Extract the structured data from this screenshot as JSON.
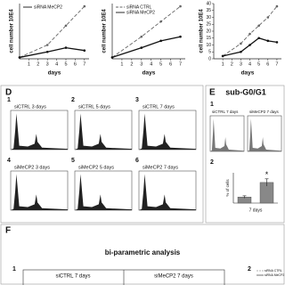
{
  "chart_data": [
    {
      "type": "line",
      "ylabel": "cell number 10E4",
      "xlabel": "days",
      "xticks": [
        1,
        2,
        3,
        4,
        5,
        6,
        7
      ],
      "xlim": [
        0,
        7.5
      ],
      "ylim": [
        0,
        40
      ],
      "series": [
        {
          "color": "#666666",
          "dashed": true,
          "x": [
            0,
            3,
            5,
            7
          ],
          "values": [
            1,
            10,
            24,
            38
          ]
        },
        {
          "name": "siRNA MeCP2",
          "color": "#111111",
          "dashed": false,
          "x": [
            0,
            3,
            5,
            7
          ],
          "values": [
            1,
            5,
            8,
            6
          ]
        }
      ]
    },
    {
      "type": "line",
      "ylabel": "cell number 10E4",
      "xlabel": "days",
      "xticks": [
        1,
        2,
        3,
        4,
        5,
        6,
        7
      ],
      "xlim": [
        0,
        7.5
      ],
      "ylim": [
        0,
        40
      ],
      "series": [
        {
          "name": "siRNA CTRL",
          "color": "#666666",
          "dashed": true,
          "x": [
            0,
            3,
            5,
            7
          ],
          "values": [
            1,
            16,
            27,
            38
          ]
        },
        {
          "name": "siRNA MeCP2",
          "color": "#111111",
          "dashed": false,
          "x": [
            0,
            3,
            5,
            7
          ],
          "values": [
            1,
            8,
            13,
            16
          ]
        }
      ]
    },
    {
      "type": "line",
      "ylabel": "cell number 10E4",
      "xlabel": "days",
      "xticks": [
        1,
        2,
        3,
        4,
        5,
        6,
        7
      ],
      "xlim": [
        0,
        7.5
      ],
      "ylim": [
        0,
        40
      ],
      "yticks": [
        0,
        5,
        10,
        15,
        20,
        25,
        30,
        35,
        40
      ],
      "series": [
        {
          "color": "#666666",
          "dashed": true,
          "x": [
            1,
            3,
            4,
            5,
            6,
            7
          ],
          "values": [
            2,
            11,
            18,
            24,
            30,
            38
          ]
        },
        {
          "color": "#111111",
          "dashed": false,
          "x": [
            1,
            3,
            4,
            5,
            6,
            7
          ],
          "values": [
            2,
            5,
            10,
            15,
            13,
            12
          ]
        }
      ]
    },
    {
      "type": "bar",
      "ylabel": "% of cells",
      "xlabel": "7 days",
      "values": [
        5,
        17
      ],
      "errors": [
        1,
        3
      ],
      "ylim": [
        0,
        25
      ],
      "colors": [
        "#888888",
        "#888888"
      ],
      "annotation": "*"
    }
  ],
  "panels": {
    "D": {
      "letter": "D",
      "items": [
        {
          "number": "1",
          "label": "siCTRL 3 days"
        },
        {
          "number": "2",
          "label": "siCTRL 5 days"
        },
        {
          "number": "3",
          "label": "siCTRL 7 days"
        },
        {
          "number": "4",
          "label": "siMeCP2 3 days"
        },
        {
          "number": "5",
          "label": "siMeCP2 5 days"
        },
        {
          "number": "6",
          "label": "siMeCP2 7 days"
        }
      ]
    },
    "E": {
      "letter": "E",
      "title": "sub-G0/G1",
      "sub1": "1",
      "hist_labels": [
        "siCTRL 7 days",
        "siMeCP2 7 days"
      ],
      "sub2": "2"
    },
    "F": {
      "letter": "F",
      "title": "bi-parametric analysis",
      "sub1": "1",
      "labels": [
        "siCTRL 7 days",
        "siMeCP2 7 days"
      ],
      "sub2": "2",
      "legend": [
        "siRNA CTRL",
        "siRNA MeCP2"
      ]
    }
  }
}
